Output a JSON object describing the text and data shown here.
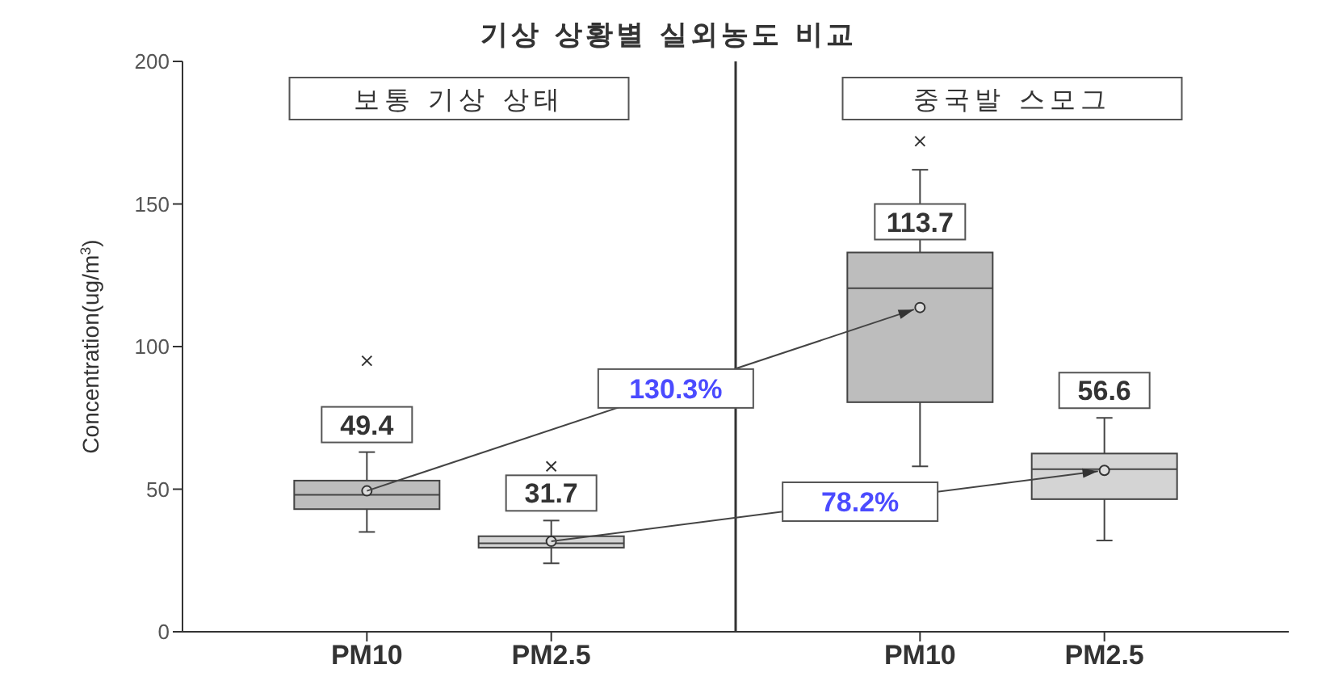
{
  "chart_data": {
    "type": "box",
    "title": "기상 상황별 실외농도 비교",
    "ylabel": "Concentration(ug/m$^{3}$)",
    "categories": [
      "PM10",
      "PM2.5",
      "PM10",
      "PM2.5"
    ],
    "colors": [
      "#bdbdbd",
      "#d4d4d4",
      "#bdbdbd",
      "#d4d4d4"
    ],
    "boxes": [
      {
        "low": 35,
        "q1": 43,
        "median": 48,
        "q3": 53,
        "high": 63,
        "mean": 49.4,
        "outliers": [
          95
        ]
      },
      {
        "low": 24,
        "q1": 29.5,
        "median": 31,
        "q3": 33.5,
        "high": 39,
        "mean": 31.7,
        "outliers": [
          58
        ]
      },
      {
        "low": 58,
        "q1": 80.5,
        "median": 120.5,
        "q3": 133,
        "high": 162,
        "mean": 113.7,
        "outliers": [
          172
        ]
      },
      {
        "low": 32,
        "q1": 46.5,
        "median": 57,
        "q3": 62.5,
        "high": 75,
        "mean": 56.6
      }
    ],
    "value_labels": [
      "49.4",
      "31.7",
      "113.7",
      "56.6"
    ],
    "annotations": [
      "보통 기상 상태",
      "중국발 스모그",
      "130.3%",
      "78.2%"
    ],
    "ylim": [
      0,
      200
    ],
    "yticks": [
      0,
      50,
      100,
      150,
      200
    ]
  }
}
